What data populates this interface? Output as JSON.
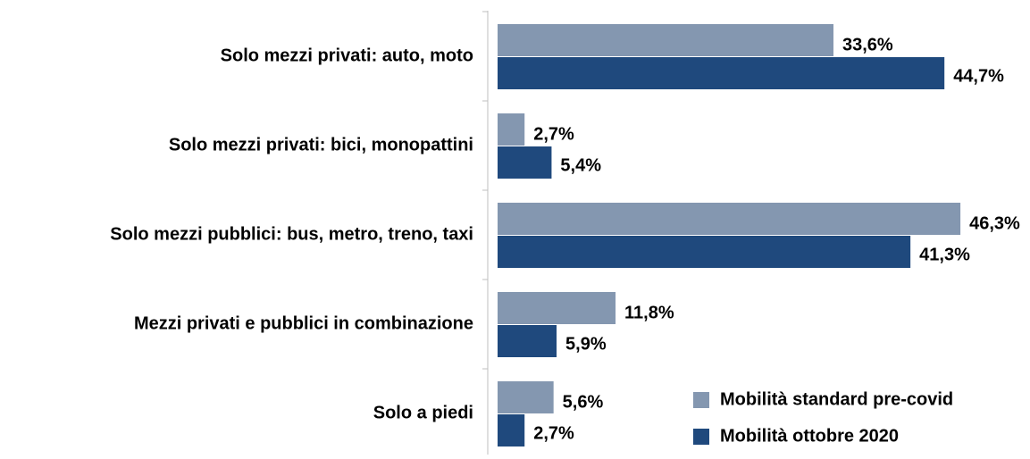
{
  "chart_data": {
    "type": "hbar",
    "categories": [
      "Solo mezzi privati: auto, moto",
      "Solo mezzi privati: bici, monopattini",
      "Solo mezzi pubblici: bus, metro, treno, taxi",
      "Mezzi privati e pubblici in combinazione",
      "Solo a piedi"
    ],
    "series": [
      {
        "name": "Mobilità standard pre-covid",
        "color": "#8497b0",
        "values": [
          33.6,
          2.7,
          46.3,
          11.8,
          5.6
        ],
        "value_labels": [
          "33,6%",
          "2,7%",
          "46,3%",
          "11,8%",
          "5,6%"
        ]
      },
      {
        "name": "Mobilità ottobre 2020",
        "color": "#1f497d",
        "values": [
          44.7,
          5.4,
          41.3,
          5.9,
          2.7
        ],
        "value_labels": [
          "44,7%",
          "5,4%",
          "41,3%",
          "5,9%",
          "2,7%"
        ]
      }
    ],
    "legend": "lower right"
  }
}
